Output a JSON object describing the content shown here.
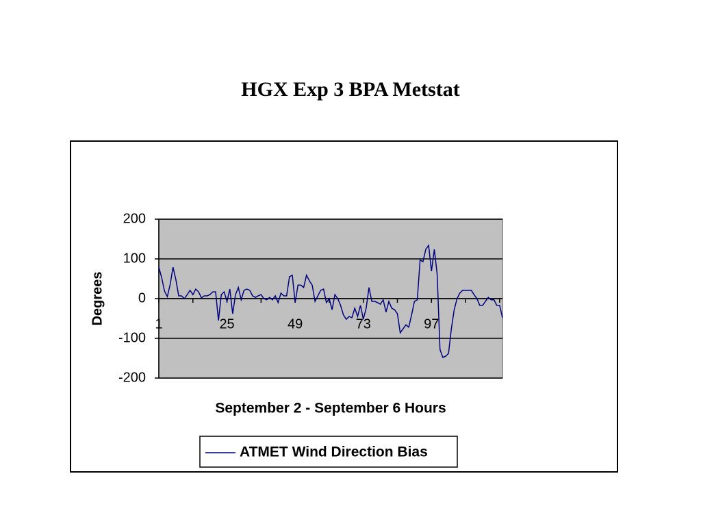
{
  "chart_data": {
    "type": "line",
    "title": "HGX Exp 3 BPA Metstat",
    "x_label": "September 2 - September 6 Hours",
    "y_label": "Degrees",
    "categories": [
      "1",
      null,
      null,
      null,
      null,
      null,
      null,
      null,
      null,
      null,
      null,
      null,
      null,
      null,
      null,
      null,
      null,
      null,
      null,
      null,
      null,
      null,
      null,
      null,
      "25",
      null,
      null,
      null,
      null,
      null,
      null,
      null,
      null,
      null,
      null,
      null,
      null,
      null,
      null,
      null,
      null,
      null,
      null,
      null,
      null,
      null,
      null,
      null,
      "49",
      null,
      null,
      null,
      null,
      null,
      null,
      null,
      null,
      null,
      null,
      null,
      null,
      null,
      null,
      null,
      null,
      null,
      null,
      null,
      null,
      null,
      null,
      null,
      "73",
      null,
      null,
      null,
      null,
      null,
      null,
      null,
      null,
      null,
      null,
      null,
      null,
      null,
      null,
      null,
      null,
      null,
      null,
      null,
      null,
      null,
      null,
      null,
      "97",
      null,
      null,
      null,
      null,
      null,
      null,
      null,
      null,
      null,
      null,
      null,
      null,
      null,
      null,
      null,
      null,
      null,
      null,
      null,
      null,
      null,
      null,
      null,
      null,
      null
    ],
    "series": [
      {
        "name": "ATMET Wind Direction Bias",
        "color": "#000080",
        "values": [
          79,
          53,
          19,
          5,
          36,
          79,
          48,
          7,
          7,
          0,
          10,
          21,
          10,
          24,
          17,
          2,
          7,
          7,
          10,
          17,
          17,
          -55,
          10,
          17,
          -7,
          24,
          -38,
          10,
          28,
          -3,
          21,
          24,
          21,
          7,
          3,
          7,
          10,
          0,
          -3,
          3,
          -3,
          7,
          -10,
          14,
          7,
          7,
          55,
          59,
          -10,
          34,
          34,
          28,
          59,
          45,
          34,
          -7,
          7,
          21,
          24,
          -10,
          0,
          -28,
          10,
          0,
          -17,
          -41,
          -52,
          -45,
          -48,
          -24,
          -45,
          -17,
          -52,
          -24,
          28,
          -7,
          -7,
          -10,
          -14,
          -3,
          -34,
          -7,
          -24,
          -28,
          -38,
          -86,
          -76,
          -66,
          -72,
          -41,
          -7,
          -3,
          97,
          93,
          124,
          134,
          69,
          124,
          62,
          -128,
          -148,
          -145,
          -138,
          -76,
          -28,
          0,
          14,
          21,
          21,
          21,
          21,
          10,
          0,
          -17,
          -17,
          -7,
          3,
          -3,
          -3,
          -17,
          -17,
          -48
        ]
      }
    ],
    "ylim": [
      -200,
      200
    ],
    "yticks": [
      -200,
      -100,
      0,
      100,
      200
    ],
    "grid": true,
    "plot_background": "#c0c0c0",
    "legend_position": "bottom"
  }
}
